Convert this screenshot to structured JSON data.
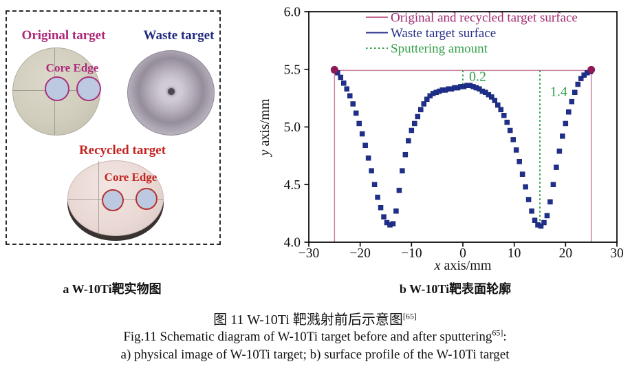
{
  "panel_a": {
    "caption": "a W-10Ti靶实物图",
    "original": {
      "label": "Original target",
      "label_color": "#ad2878",
      "core_edge_label": "Core Edge",
      "disc_color": "#d2cebe",
      "spot_fill": "#bcc9e0",
      "spot_outline": "#a8307c"
    },
    "waste": {
      "label": "Waste target",
      "label_color": "#212a7e",
      "disc_color": "#b7b0bc"
    },
    "recycled": {
      "label": "Recycled target",
      "label_color": "#c42420",
      "core_edge_label": "Core Edge",
      "disc_color": "#ead9d5",
      "spot_fill": "#bcc9e0",
      "spot_outline": "#b53232"
    }
  },
  "panel_b": {
    "caption": "b W-10Ti靶表面轮廓"
  },
  "figure_caption": {
    "zh": "图  11    W-10Ti 靶溅射前后示意图",
    "zh_sup": "[65]",
    "en_line1": "Fig.11 Schematic diagram of W-10Ti target before and after sputtering",
    "en_sup": "65]",
    "en_tail": ":",
    "en_line2": "a) physical image of W-10Ti target; b) surface profile of the W-10Ti target"
  },
  "chart_data": {
    "type": "scatter",
    "xlabel_italic": "x",
    "xlabel_rest": " axis/mm",
    "ylabel_italic": "y",
    "ylabel_rest": " axis/mm",
    "xlim": [
      -30,
      30
    ],
    "ylim": [
      4.0,
      6.0
    ],
    "xticks": [
      -30,
      -20,
      -10,
      0,
      10,
      20,
      30
    ],
    "yticks": [
      4.0,
      4.5,
      5.0,
      5.5,
      6.0
    ],
    "grid": false,
    "legend_position": "top-center-inside",
    "legend": [
      {
        "label": "Original and recycled target surface",
        "line_color": "#c2688f",
        "text_color": "#a22a72",
        "style": "solid"
      },
      {
        "label": "Waste target surface",
        "line_color": "#27308a",
        "text_color": "#27308a",
        "style": "solid"
      },
      {
        "label": "Sputtering amount",
        "line_color": "#35a04a",
        "text_color": "#35a04a",
        "style": "dotted"
      }
    ],
    "reference_surface": {
      "name": "Original and recycled target surface",
      "y": 5.49,
      "x_start": -25,
      "x_end": 25,
      "drop_to_y": 4.0,
      "line_color": "#c9839f",
      "marker_color": "#8c1a58"
    },
    "waste_profile": {
      "name": "Waste target surface",
      "marker": "square",
      "color": "#1f2f8e",
      "points": [
        [
          -25.0,
          5.49
        ],
        [
          -24.4,
          5.47
        ],
        [
          -23.8,
          5.43
        ],
        [
          -23.2,
          5.38
        ],
        [
          -22.6,
          5.33
        ],
        [
          -22.0,
          5.27
        ],
        [
          -21.4,
          5.2
        ],
        [
          -20.8,
          5.12
        ],
        [
          -20.2,
          5.03
        ],
        [
          -19.6,
          4.94
        ],
        [
          -19.0,
          4.84
        ],
        [
          -18.4,
          4.73
        ],
        [
          -17.8,
          4.62
        ],
        [
          -17.2,
          4.5
        ],
        [
          -16.6,
          4.39
        ],
        [
          -16.0,
          4.3
        ],
        [
          -15.4,
          4.22
        ],
        [
          -14.8,
          4.17
        ],
        [
          -14.2,
          4.15
        ],
        [
          -13.6,
          4.16
        ],
        [
          -13.0,
          4.27
        ],
        [
          -12.4,
          4.45
        ],
        [
          -11.8,
          4.62
        ],
        [
          -11.2,
          4.76
        ],
        [
          -10.6,
          4.88
        ],
        [
          -10.0,
          4.97
        ],
        [
          -9.4,
          5.03
        ],
        [
          -8.8,
          5.09
        ],
        [
          -8.2,
          5.15
        ],
        [
          -7.6,
          5.2
        ],
        [
          -7.0,
          5.24
        ],
        [
          -6.4,
          5.27
        ],
        [
          -5.8,
          5.29
        ],
        [
          -5.2,
          5.3
        ],
        [
          -4.6,
          5.31
        ],
        [
          -4.0,
          5.32
        ],
        [
          -3.4,
          5.32
        ],
        [
          -2.8,
          5.33
        ],
        [
          -2.2,
          5.33
        ],
        [
          -1.6,
          5.34
        ],
        [
          -1.0,
          5.34
        ],
        [
          -0.4,
          5.35
        ],
        [
          0.2,
          5.35
        ],
        [
          0.8,
          5.36
        ],
        [
          1.4,
          5.36
        ],
        [
          2.0,
          5.35
        ],
        [
          2.6,
          5.34
        ],
        [
          3.2,
          5.33
        ],
        [
          3.8,
          5.31
        ],
        [
          4.4,
          5.3
        ],
        [
          5.0,
          5.28
        ],
        [
          5.6,
          5.26
        ],
        [
          6.2,
          5.23
        ],
        [
          6.8,
          5.19
        ],
        [
          7.4,
          5.15
        ],
        [
          8.0,
          5.1
        ],
        [
          8.6,
          5.04
        ],
        [
          9.2,
          4.97
        ],
        [
          9.8,
          4.89
        ],
        [
          10.4,
          4.8
        ],
        [
          11.0,
          4.7
        ],
        [
          11.6,
          4.59
        ],
        [
          12.2,
          4.48
        ],
        [
          12.8,
          4.37
        ],
        [
          13.4,
          4.27
        ],
        [
          14.0,
          4.19
        ],
        [
          14.6,
          4.15
        ],
        [
          15.2,
          4.14
        ],
        [
          15.8,
          4.17
        ],
        [
          16.4,
          4.23
        ],
        [
          17.0,
          4.35
        ],
        [
          17.6,
          4.5
        ],
        [
          18.2,
          4.65
        ],
        [
          18.8,
          4.79
        ],
        [
          19.4,
          4.92
        ],
        [
          20.0,
          5.03
        ],
        [
          20.6,
          5.13
        ],
        [
          21.2,
          5.22
        ],
        [
          21.8,
          5.3
        ],
        [
          22.4,
          5.37
        ],
        [
          23.0,
          5.42
        ],
        [
          23.6,
          5.45
        ],
        [
          24.2,
          5.47
        ],
        [
          24.8,
          5.48
        ]
      ]
    },
    "sputter_annotations": [
      {
        "text": "0.2",
        "x_line": 0,
        "y_from": 5.49,
        "y_to": 5.34,
        "label_x": 1.2,
        "label_y": 5.4,
        "color": "#2f9e44"
      },
      {
        "text": "1.4",
        "x_line": 15,
        "y_from": 5.49,
        "y_to": 4.16,
        "label_x": 17.0,
        "label_y": 5.27,
        "color": "#2f9e44"
      }
    ]
  }
}
